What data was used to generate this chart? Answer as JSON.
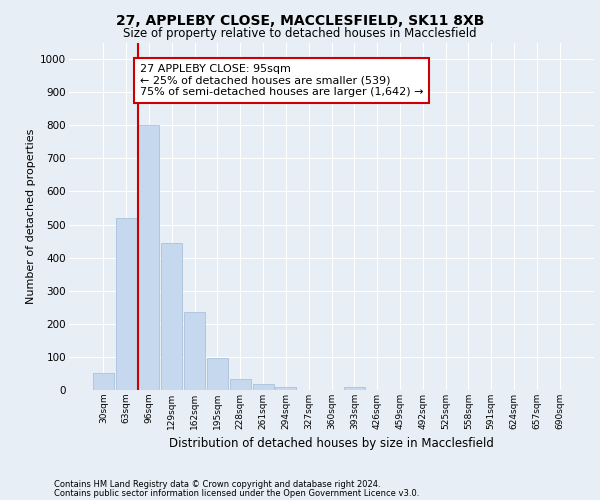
{
  "title_line1": "27, APPLEBY CLOSE, MACCLESFIELD, SK11 8XB",
  "title_line2": "Size of property relative to detached houses in Macclesfield",
  "xlabel": "Distribution of detached houses by size in Macclesfield",
  "ylabel": "Number of detached properties",
  "footnote1": "Contains HM Land Registry data © Crown copyright and database right 2024.",
  "footnote2": "Contains public sector information licensed under the Open Government Licence v3.0.",
  "bar_labels": [
    "30sqm",
    "63sqm",
    "96sqm",
    "129sqm",
    "162sqm",
    "195sqm",
    "228sqm",
    "261sqm",
    "294sqm",
    "327sqm",
    "360sqm",
    "393sqm",
    "426sqm",
    "459sqm",
    "492sqm",
    "525sqm",
    "558sqm",
    "591sqm",
    "624sqm",
    "657sqm",
    "690sqm"
  ],
  "bar_values": [
    50,
    520,
    800,
    445,
    237,
    97,
    33,
    18,
    10,
    0,
    0,
    10,
    0,
    0,
    0,
    0,
    0,
    0,
    0,
    0,
    0
  ],
  "bar_color": "#c5d8ed",
  "bar_edge_color": "#a0bcd8",
  "bg_color": "#e8eef5",
  "plot_bg_color": "#e8eef5",
  "grid_color": "#ffffff",
  "vline_x": 1.5,
  "vline_color": "#cc0000",
  "annotation_text": "27 APPLEBY CLOSE: 95sqm\n← 25% of detached houses are smaller (539)\n75% of semi-detached houses are larger (1,642) →",
  "annotation_box_color": "#ffffff",
  "annotation_box_edge": "#cc0000",
  "ylim": [
    0,
    1050
  ],
  "yticks": [
    0,
    100,
    200,
    300,
    400,
    500,
    600,
    700,
    800,
    900,
    1000
  ]
}
